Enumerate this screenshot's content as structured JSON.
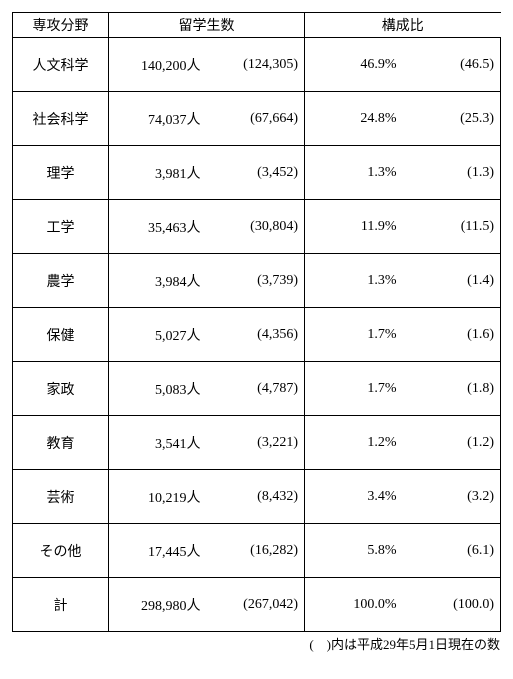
{
  "headers": {
    "field": "専攻分野",
    "count": "留学生数",
    "ratio": "構成比"
  },
  "rows": [
    {
      "field": "人文科学",
      "count": "140,200人",
      "count_prev": "(124,305)",
      "ratio": "46.9%",
      "ratio_prev": "(46.5)"
    },
    {
      "field": "社会科学",
      "count": "74,037人",
      "count_prev": "(67,664)",
      "ratio": "24.8%",
      "ratio_prev": "(25.3)"
    },
    {
      "field": "理学",
      "count": "3,981人",
      "count_prev": "(3,452)",
      "ratio": "1.3%",
      "ratio_prev": "(1.3)"
    },
    {
      "field": "工学",
      "count": "35,463人",
      "count_prev": "(30,804)",
      "ratio": "11.9%",
      "ratio_prev": "(11.5)"
    },
    {
      "field": "農学",
      "count": "3,984人",
      "count_prev": "(3,739)",
      "ratio": "1.3%",
      "ratio_prev": "(1.4)"
    },
    {
      "field": "保健",
      "count": "5,027人",
      "count_prev": "(4,356)",
      "ratio": "1.7%",
      "ratio_prev": "(1.6)"
    },
    {
      "field": "家政",
      "count": "5,083人",
      "count_prev": "(4,787)",
      "ratio": "1.7%",
      "ratio_prev": "(1.8)"
    },
    {
      "field": "教育",
      "count": "3,541人",
      "count_prev": "(3,221)",
      "ratio": "1.2%",
      "ratio_prev": "(1.2)"
    },
    {
      "field": "芸術",
      "count": "10,219人",
      "count_prev": "(8,432)",
      "ratio": "3.4%",
      "ratio_prev": "(3.2)"
    },
    {
      "field": "その他",
      "count": "17,445人",
      "count_prev": "(16,282)",
      "ratio": "5.8%",
      "ratio_prev": "(6.1)"
    },
    {
      "field": "計",
      "count": "298,980人",
      "count_prev": "(267,042)",
      "ratio": "100.0%",
      "ratio_prev": "(100.0)"
    }
  ],
  "footnote": "(　)内は平成29年5月1日現在の数"
}
